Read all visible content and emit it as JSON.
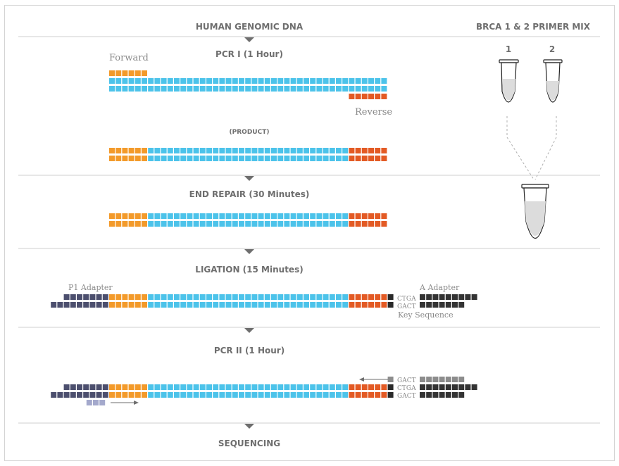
{
  "colors": {
    "genomic": "#4cc3ea",
    "forward_primer": "#f39a2a",
    "reverse_primer": "#e35a24",
    "p1_adapter": "#4c4f6e",
    "p1_primer": "#a4a9cc",
    "a_adapter": "#333333",
    "key_sequence": "#2a2a2a",
    "a_primer": "#8c8c8c",
    "divider": "#cfcfcf",
    "text": "#6e6e6e"
  },
  "steps": [
    {
      "id": "step-genomic",
      "title": "HUMAN GENOMIC DNA"
    },
    {
      "id": "step-pcr1",
      "title": "PCR I (1 Hour)"
    },
    {
      "id": "step-end-repair",
      "title": "END REPAIR (30 Minutes)"
    },
    {
      "id": "step-ligation",
      "title": "LIGATION (15 Minutes)"
    },
    {
      "id": "step-pcr2",
      "title": "PCR II (1 Hour)"
    },
    {
      "id": "step-sequencing",
      "title": "SEQUENCING"
    }
  ],
  "primer_mix": {
    "title": "BRCA 1 & 2 PRIMER MIX",
    "tube_labels": [
      "1",
      "2"
    ]
  },
  "labels": {
    "forward": "Forward",
    "reverse": "Reverse",
    "product": "(PRODUCT)",
    "p1_adapter": "P1 Adapter",
    "a_adapter": "A Adapter",
    "key_sequence": "Key Sequence",
    "ctga": "CTGA",
    "gact": "GACT"
  }
}
